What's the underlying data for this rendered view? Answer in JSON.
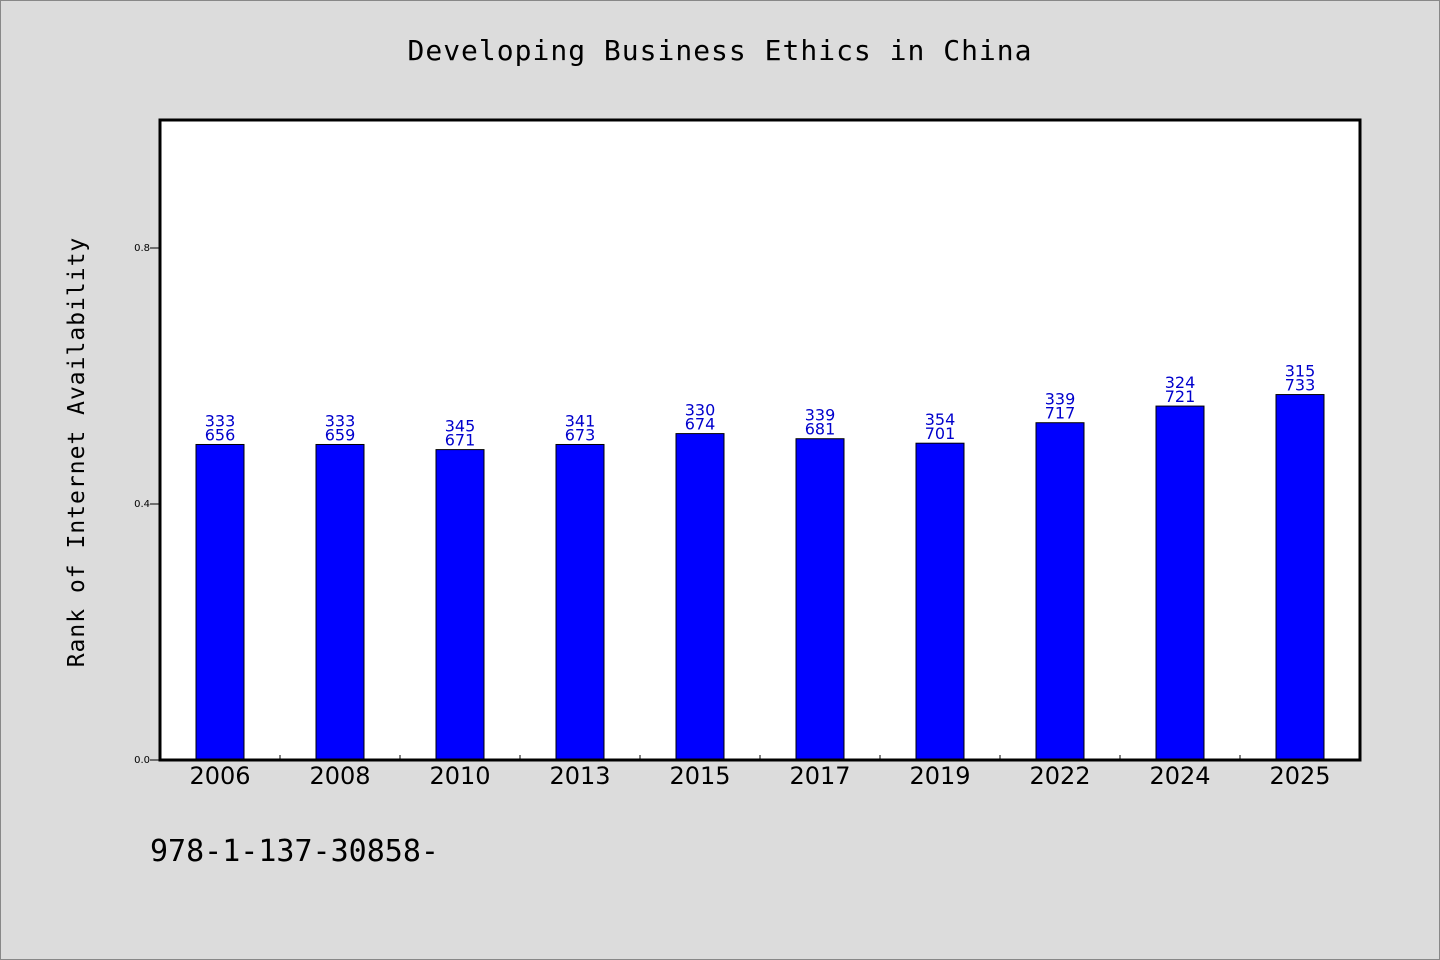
{
  "chart_data": {
    "type": "bar",
    "title": "Developing Business Ethics in China",
    "xlabel": "",
    "ylabel": "Rank of Internet Availability",
    "categories": [
      "2006",
      "2008",
      "2010",
      "2013",
      "2015",
      "2017",
      "2019",
      "2022",
      "2024",
      "2025"
    ],
    "values": [
      0.493,
      0.493,
      0.485,
      0.493,
      0.51,
      0.502,
      0.495,
      0.527,
      0.553,
      0.571
    ],
    "bar_labels": [
      [
        "333",
        "656"
      ],
      [
        "333",
        "659"
      ],
      [
        "345",
        "671"
      ],
      [
        "341",
        "673"
      ],
      [
        "330",
        "674"
      ],
      [
        "339",
        "681"
      ],
      [
        "354",
        "701"
      ],
      [
        "339",
        "717"
      ],
      [
        "324",
        "721"
      ],
      [
        "315",
        "733"
      ]
    ],
    "yticks": [
      0.0,
      0.4,
      0.8
    ],
    "ytick_labels": [
      "0.0",
      "0.4",
      "0.8"
    ],
    "ylim": [
      0,
      1.0
    ],
    "grid": false,
    "legend": "none",
    "colors": {
      "bar": "#0000ff",
      "bar_label": "#0000cc",
      "plot_bg": "#ffffff",
      "page_bg": "#dcdcdc"
    }
  },
  "footer": {
    "code": "978-1-137-30858-"
  }
}
